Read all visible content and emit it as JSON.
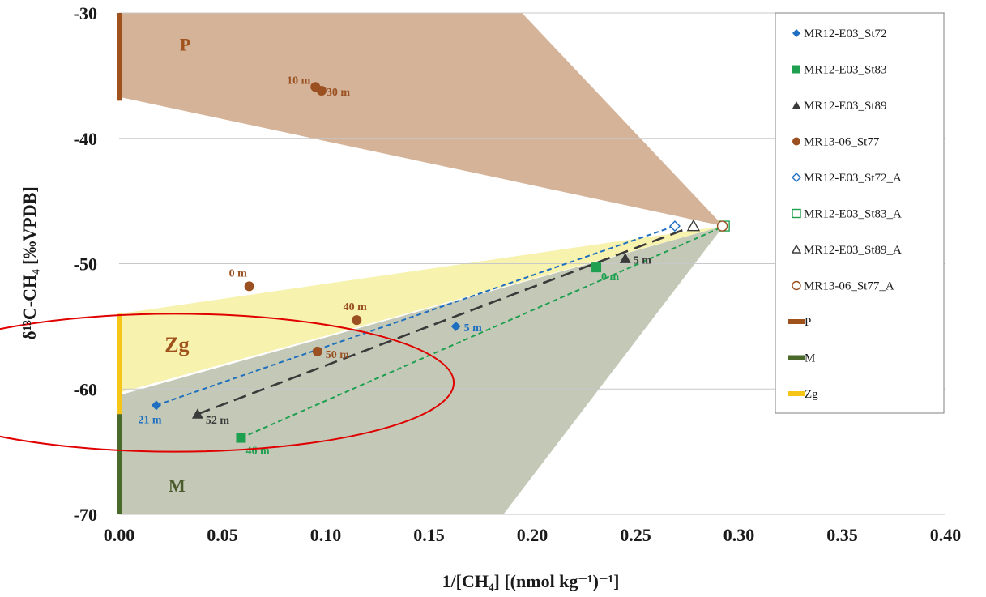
{
  "chart_data": {
    "type": "scatter",
    "xlabel": "1/[CH₄] [(nmol kg⁻¹)⁻¹]",
    "ylabel": "δ¹³C-CH₄ [‰VPDB]",
    "xlim": [
      0,
      0.4
    ],
    "ylim": [
      -70,
      -30
    ],
    "x_ticks": [
      "0.00",
      "0.05",
      "0.10",
      "0.15",
      "0.20",
      "0.25",
      "0.30",
      "0.35",
      "0.40"
    ],
    "y_ticks": [
      "-30",
      "-40",
      "-50",
      "-60",
      "-70"
    ],
    "grid": "horizontal",
    "legend_position": "right",
    "regions": [
      {
        "name": "P",
        "color": "#c9a080",
        "polygon": [
          [
            0,
            -30
          ],
          [
            0.195,
            -30
          ],
          [
            0.2925,
            -47.0
          ],
          [
            0,
            -36.7
          ]
        ]
      },
      {
        "name": "Zg",
        "color": "#f6f0a0",
        "polygon": [
          [
            0,
            -54.0
          ],
          [
            0.2925,
            -47.0
          ],
          [
            0,
            -60.3
          ]
        ]
      },
      {
        "name": "M",
        "color": "#b4bca4",
        "polygon": [
          [
            0,
            -60.5
          ],
          [
            0.2925,
            -47.0
          ],
          [
            0.186,
            -70
          ],
          [
            0,
            -70
          ]
        ]
      }
    ],
    "bars": [
      {
        "name": "P",
        "color": "#a0521d",
        "y_range": [
          -37,
          -30
        ]
      },
      {
        "name": "Zg",
        "color": "#f5c518",
        "y_range": [
          -62,
          -54
        ]
      },
      {
        "name": "M",
        "color": "#4a6a2c",
        "y_range": [
          -70,
          -62
        ]
      }
    ],
    "region_labels": [
      {
        "text": "P",
        "x": 0.032,
        "y": -33.0,
        "color": "#a0521d"
      },
      {
        "text": "Zg",
        "x": 0.028,
        "y": -57.0,
        "color": "#a0521d"
      },
      {
        "text": "M",
        "x": 0.028,
        "y": -68.2,
        "color": "#4a5a2c"
      }
    ],
    "series": [
      {
        "name": "MR12-E03_St72",
        "marker": "diamond",
        "color": "#1f6fc0",
        "points": [
          [
            0.018,
            -61.3
          ],
          [
            0.163,
            -55.0
          ]
        ],
        "labels": [
          "21 m",
          "5 m"
        ]
      },
      {
        "name": "MR12-E03_St83",
        "marker": "square",
        "color": "#1fa050",
        "points": [
          [
            0.059,
            -63.9
          ],
          [
            0.231,
            -50.3
          ]
        ],
        "labels": [
          "46 m",
          "0 m"
        ]
      },
      {
        "name": "MR12-E03_St89",
        "marker": "triangle",
        "color": "#3a3a3a",
        "points": [
          [
            0.038,
            -62.0
          ],
          [
            0.245,
            -49.6
          ]
        ],
        "labels": [
          "52 m",
          "5 m"
        ]
      },
      {
        "name": "MR13-06_St77",
        "marker": "circle",
        "color": "#9a5020",
        "points": [
          [
            0.095,
            -35.9
          ],
          [
            0.098,
            -36.2
          ],
          [
            0.063,
            -51.8
          ],
          [
            0.115,
            -54.5
          ],
          [
            0.096,
            -57.0
          ]
        ],
        "labels": [
          "10 m",
          "30 m",
          "0 m",
          "40 m",
          "50 m"
        ]
      },
      {
        "name": "MR12-E03_St72_A",
        "marker": "diamond-open",
        "color": "#1f6fc0",
        "points": [
          [
            0.269,
            -47.0
          ]
        ],
        "labels": []
      },
      {
        "name": "MR12-E03_St83_A",
        "marker": "square-open",
        "color": "#1fa050",
        "points": [
          [
            0.293,
            -47.0
          ]
        ],
        "labels": []
      },
      {
        "name": "MR12-E03_St89_A",
        "marker": "triangle-open",
        "color": "#3a3a3a",
        "points": [
          [
            0.278,
            -47.0
          ]
        ],
        "labels": []
      },
      {
        "name": "MR13-06_St77_A",
        "marker": "circle-open",
        "color": "#9a5020",
        "points": [
          [
            0.292,
            -47.0
          ]
        ],
        "labels": []
      }
    ],
    "mixing_lines": [
      {
        "series": "MR12-E03_St72",
        "color": "#1f6fc0",
        "from": [
          0.018,
          -61.3
        ],
        "to": [
          0.269,
          -47.0
        ],
        "style": "short-dash"
      },
      {
        "series": "MR12-E03_St83",
        "color": "#1fa050",
        "from": [
          0.059,
          -63.9
        ],
        "to": [
          0.293,
          -47.0
        ],
        "style": "short-dash"
      },
      {
        "series": "MR12-E03_St89",
        "color": "#3a3a3a",
        "from": [
          0.038,
          -62.0
        ],
        "to": [
          0.278,
          -47.0
        ],
        "style": "long-dash"
      }
    ],
    "legend_items": [
      {
        "label": "MR12-E03_St72",
        "kind": "diamond",
        "color": "#1f6fc0"
      },
      {
        "label": "MR12-E03_St83",
        "kind": "square",
        "color": "#1fa050"
      },
      {
        "label": "MR12-E03_St89",
        "kind": "triangle",
        "color": "#3a3a3a"
      },
      {
        "label": "MR13-06_St77",
        "kind": "circle",
        "color": "#9a5020"
      },
      {
        "label": "MR12-E03_St72_A",
        "kind": "diamond-open",
        "color": "#1f6fc0"
      },
      {
        "label": "MR12-E03_St83_A",
        "kind": "square-open",
        "color": "#1fa050"
      },
      {
        "label": "MR12-E03_St89_A",
        "kind": "triangle-open",
        "color": "#3a3a3a"
      },
      {
        "label": "MR13-06_St77_A",
        "kind": "circle-open",
        "color": "#9a5020"
      },
      {
        "label": "P",
        "kind": "bar",
        "color": "#a0521d"
      },
      {
        "label": "M",
        "kind": "bar",
        "color": "#4a6a2c"
      },
      {
        "label": "Zg",
        "kind": "bar",
        "color": "#f5c518"
      }
    ],
    "annotation": {
      "shape": "ellipse",
      "color": "#e00000",
      "center": [
        0.027,
        -59.5
      ],
      "radius_x": 0.135,
      "radius_y": 5.5
    }
  }
}
